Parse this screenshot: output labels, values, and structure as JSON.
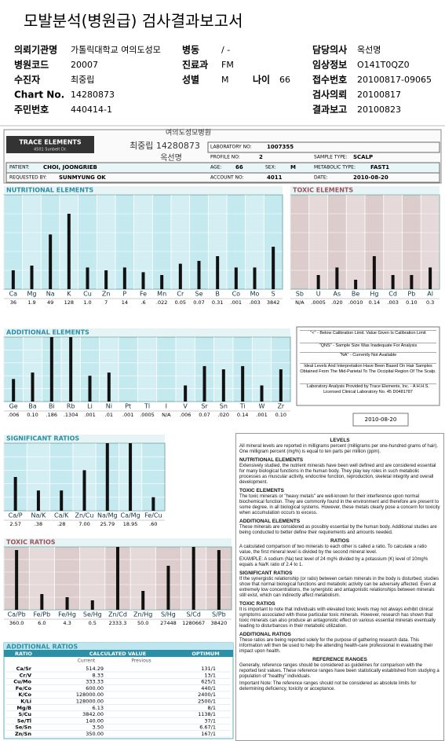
{
  "header": {
    "title": "모발분석(병원급) 검사결과보고서"
  },
  "info": {
    "rows": [
      [
        {
          "label": "의뢰기관명",
          "value": "가톨릭대학교 여의도성모"
        },
        {
          "label": "병동",
          "value": "/ -"
        },
        null,
        {
          "label": "담당의사",
          "value": "옥선명"
        }
      ],
      [
        {
          "label": "병원코드",
          "value": "20007"
        },
        {
          "label": "진료과",
          "value": "FM"
        },
        null,
        {
          "label": "임상정보",
          "value": "O141T0QZ0"
        }
      ],
      [
        {
          "label": "수진자",
          "value": "최중립"
        },
        {
          "label": "성별",
          "value": "M"
        },
        {
          "label": "나이",
          "value": "66"
        },
        {
          "label": "접수번호",
          "value": "20100817-09065"
        }
      ],
      [
        {
          "label": "Chart No.",
          "value": "14280873"
        },
        null,
        null,
        {
          "label": "검사의뢰",
          "value": "20100817"
        }
      ],
      [
        {
          "label": "주민번호",
          "value": "440414-1"
        },
        null,
        null,
        {
          "label": "결과보고",
          "value": "20100823"
        }
      ]
    ]
  },
  "report": {
    "logo": "TRACE ELEMENTS",
    "address": "4501 Sunbelt Dr.",
    "handwritten": [
      "여의도성모병원",
      "최중립 14280873",
      "옥선명"
    ],
    "fields": [
      {
        "label": "LABORATORY NO:",
        "value": "1007355"
      },
      {
        "label": "PROFILE NO:",
        "value": "2"
      },
      {
        "label": "SAMPLE TYPE:",
        "value": "SCALP"
      },
      {
        "label": "PATIENT:",
        "value": "CHOI, JOONGRIEB"
      },
      {
        "label": "AGE:",
        "value": "66"
      },
      {
        "label": "SEX:",
        "value": "M"
      },
      {
        "label": "METABOLIC TYPE:",
        "value": "FAST1"
      },
      {
        "label": "REQUESTED BY:",
        "value": "SUNMYUNG OK"
      },
      {
        "label": "ACCOUNT NO:",
        "value": "4011"
      },
      {
        "label": "DATE:",
        "value": "2010-08-20"
      }
    ],
    "legend": [
      "\"<\" - Below Calibration Limit. Value Given Is Calibration Limit",
      "\"QNS\" - Sample Size Was Inadequate For Analysis",
      "\"NA\" - Currently Not Available",
      "Ideal Levels And Interpretation Have Been Based On Hair Samples Obtained From The Mid-Parietal To The Occipital Region Of The Scalp.",
      "Laboratory Analysis Provided by Trace Elements, Inc. - A H.H.S. Licensed Clinical Laboratory No. 45 D0481787"
    ],
    "date_stamp": "2010-08-20"
  },
  "charts": [
    {
      "title": "NUTRITIONAL ELEMENTS",
      "categories": [
        "Ca",
        "Mg",
        "Na",
        "K",
        "Cu",
        "Zn",
        "P",
        "Fe",
        "Mn",
        "Cr",
        "Se",
        "B",
        "Co",
        "Mo",
        "S"
      ],
      "values": [
        36,
        1.9,
        49,
        128,
        1.0,
        7,
        14,
        0.6,
        0.022,
        0.05,
        0.07,
        0.31,
        0.001,
        0.003,
        3842
      ],
      "value_labels": [
        "36",
        "1.9",
        "49",
        "128",
        "1.0",
        "7",
        "14",
        ".6",
        ".022",
        "0.05",
        "0.07",
        "0.31",
        ".001",
        ".003",
        "3842"
      ],
      "bar_levels": [
        20,
        25,
        58,
        80,
        23,
        20,
        23,
        18,
        15,
        27,
        30,
        35,
        23,
        23,
        45
      ],
      "ylim": [
        0,
        100
      ],
      "color": "#111111",
      "background": "#c4eaf0",
      "header_color": "#2b8fa6"
    },
    {
      "title": "TOXIC ELEMENTS",
      "categories": [
        "Sb",
        "U",
        "As",
        "Be",
        "Hg",
        "Cd",
        "Pb",
        "Al"
      ],
      "values": [
        null,
        0.0005,
        0.02,
        0.001,
        0.14,
        0.003,
        0.1,
        0.3
      ],
      "value_labels": [
        "N/A",
        ".0005",
        ".020",
        ".0010",
        "0.14",
        ".003",
        "0.10",
        "0.3"
      ],
      "bar_levels": [
        null,
        15,
        23,
        10,
        35,
        15,
        15,
        23
      ],
      "ylim": [
        0,
        100
      ],
      "color": "#111111",
      "background": "#dccccc",
      "header_color": "#a0525a"
    },
    {
      "title": "ADDITIONAL ELEMENTS",
      "categories": [
        "Ge",
        "Ba",
        "Bi",
        "Rb",
        "Li",
        "Ni",
        "Pt",
        "Tl",
        "I",
        "V",
        "Sr",
        "Sn",
        "Ti",
        "W",
        "Zr"
      ],
      "values": [
        0.006,
        0.1,
        0.186,
        0.1304,
        0.001,
        0.01,
        0.001,
        0.0005,
        null,
        0.006,
        0.07,
        0.02,
        0.14,
        0.001,
        0.1
      ],
      "value_labels": [
        ".006",
        "0.10",
        ".186",
        ".1304",
        ".001",
        ".01",
        ".001",
        ".0005",
        "N/A",
        ".006",
        "0.07",
        ".020",
        "0.14",
        ".001",
        "0.10"
      ],
      "bar_levels": [
        35,
        45,
        100,
        100,
        40,
        45,
        null,
        null,
        null,
        25,
        55,
        50,
        55,
        25,
        50
      ],
      "ylim": [
        0,
        100
      ],
      "color": "#111111",
      "background": "#c4eaf0",
      "header_color": "#2b8fa6"
    },
    {
      "title": "SIGNIFICANT RATIOS",
      "categories": [
        "Ca/P",
        "Na/K",
        "Ca/K",
        "Zn/Cu",
        "Na/Mg",
        "Ca/Mg",
        "Fe/Cu"
      ],
      "values": [
        2.57,
        0.38,
        0.28,
        7.0,
        25.79,
        18.95,
        0.6
      ],
      "value_labels": [
        "2.57",
        ".38",
        ".28",
        "7.00",
        "25.79",
        "18.95",
        ".60"
      ],
      "bar_levels": [
        50,
        30,
        30,
        60,
        100,
        100,
        20
      ],
      "ylim": [
        0,
        100
      ],
      "color": "#111111",
      "background": "#c4eaf0",
      "header_color": "#2b8fa6"
    },
    {
      "title": "TOXIC RATIOS",
      "categories": [
        "Ca/Pb",
        "Fe/Pb",
        "Fe/Hg",
        "Se/Hg",
        "Zn/Cd",
        "Zn/Hg",
        "S/Hg",
        "S/Cd",
        "S/Pb"
      ],
      "values": [
        360.0,
        6.0,
        4.3,
        0.5,
        2333.3,
        50.0,
        27448,
        1280667,
        38420
      ],
      "value_labels": [
        "360.0",
        "6.0",
        "4.3",
        "0.5",
        "2333.3",
        "50.0",
        "27448",
        "1280667",
        "38420"
      ],
      "bar_levels": [
        95,
        25,
        20,
        15,
        100,
        30,
        70,
        100,
        95
      ],
      "ylim": [
        0,
        100
      ],
      "color": "#111111",
      "background": "#dccccc",
      "header_color": "#a0525a"
    }
  ],
  "additional_ratios": {
    "title": "ADDITIONAL RATIOS",
    "headers": [
      "RATIO",
      "CALCULATED VALUE",
      "OPTIMUM"
    ],
    "subheaders": [
      "Current",
      "Previous"
    ],
    "rows": [
      [
        "Ca/Sr",
        "514.29",
        "131/1"
      ],
      [
        "Cr/V",
        "8.33",
        "13/1"
      ],
      [
        "Cu/Mo",
        "333.33",
        "625/1"
      ],
      [
        "Fe/Co",
        "600.00",
        "440/1"
      ],
      [
        "K/Co",
        "128000.00",
        "2400/1"
      ],
      [
        "K/Li",
        "128000.00",
        "2500/1"
      ],
      [
        "Mg/B",
        "6.13",
        "8/1"
      ],
      [
        "S/Cu",
        "3842.00",
        "1138/1"
      ],
      [
        "Se/Tl",
        "140.00",
        "37/1"
      ],
      [
        "Se/Sn",
        "3.50",
        "6.67/1"
      ],
      [
        "Zn/Sn",
        "350.00",
        "167/1"
      ]
    ]
  },
  "notes": [
    {
      "heading": "LEVELS",
      "paragraphs": [
        "All mineral levels are reported in milligrams percent (milligrams per one-hundred grams of hair). One milligram percent (mg%) is equal to ten parts per million (ppm)."
      ]
    },
    {
      "heading": "NUTRITIONAL ELEMENTS",
      "paragraphs": [
        "Extensively studied, the nutrient minerals have been well defined and are considered essential for many biological functions in the human body. They play key roles in such metabolic processes as muscular activity, endocrine function, reproduction, skeletal integrity and overall development."
      ]
    },
    {
      "heading": "TOXIC ELEMENTS",
      "paragraphs": [
        "The toxic minerals or \"heavy metals\" are well-known for their interference upon normal biochemical function. They are commonly found in the environment and therefore are present to some degree, in all biological systems. However, these metals clearly pose a concern for toxicity when accumulation occurs to excess."
      ]
    },
    {
      "heading": "ADDITIONAL ELEMENTS",
      "paragraphs": [
        "These minerals are considered as possibly essential by the human body. Additional studies are being conducted to better define their requirements and amounts needed."
      ]
    },
    {
      "heading": "RATIOS",
      "paragraphs": [
        "A calculated comparison of two minerals to each other is called a ratio. To calculate a ratio value, the first mineral level is divided by the second mineral level.",
        "EXAMPLE: A sodium (Na) test level of 24 mg% divided by a potassium (K) level of 10mg% equals a Na/K ratio of 2.4 to 1."
      ]
    },
    {
      "heading": "SIGNIFICANT RATIOS",
      "paragraphs": [
        "If the synergistic relationship (or ratio) between certain minerals in the body is disturbed, studies show that normal biological functions and metabolic activity can be adversely affected. Even at extremely low concentrations, the synergistic and antagonistic relationships between minerals still exist, which can indirectly affect metabolism."
      ]
    },
    {
      "heading": "TOXIC RATIOS",
      "paragraphs": [
        "It is important to note that individuals with elevated toxic levels may not always exhibit clinical symptoms associated with those particular toxic minerals. However, research has shown that toxic minerals can also produce an antagonistic effect on various essential minerals eventually leading to disturbances in their metabolic utilization."
      ]
    },
    {
      "heading": "ADDITIONAL RATIOS",
      "paragraphs": [
        "These ratios are being reported solely for the purpose of gathering research data. This information will then be used to help the attending health-care professional in evaluating their impact upon health."
      ]
    },
    {
      "heading": "REFERENCE RANGES",
      "paragraphs": [
        "Generally, reference ranges should be considered as guidelines for comparison with the reported test values. These reference ranges have been statistically established from studying a population of \"healthy\" individuals.",
        "Important Note: The reference ranges should not be considered as absolute limits for determining deficiency, toxicity or acceptance."
      ]
    }
  ]
}
